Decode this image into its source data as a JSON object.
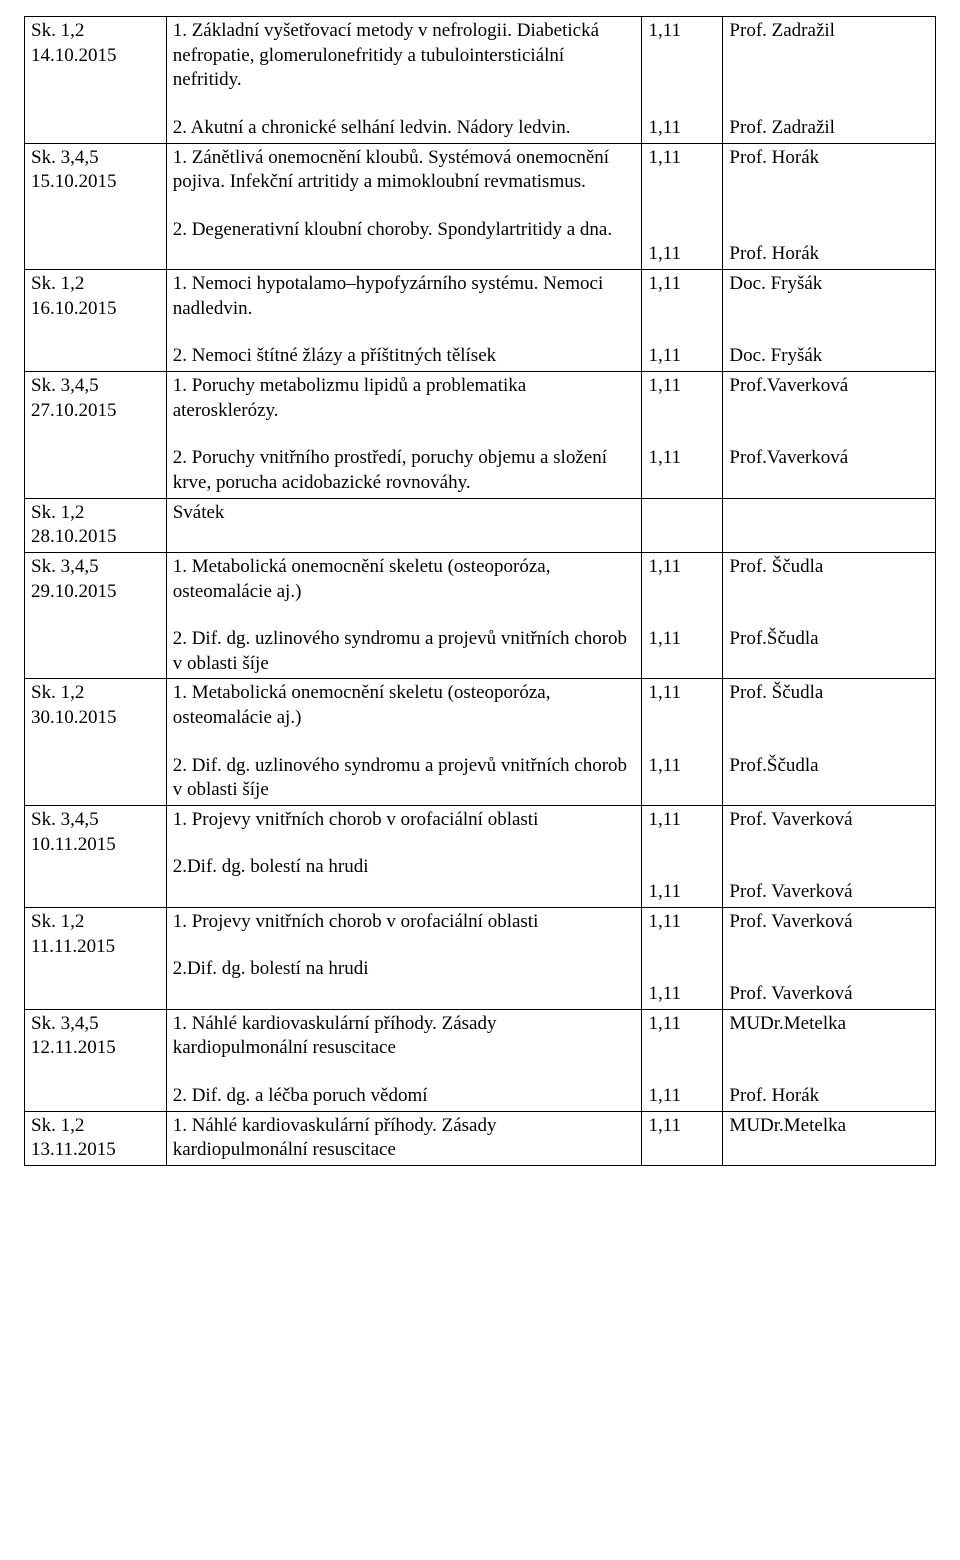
{
  "table": {
    "columns": [
      "date",
      "topic",
      "code",
      "lecturer"
    ],
    "col_widths_pct": [
      14,
      47,
      8,
      21
    ],
    "font_family": "Times New Roman",
    "font_size_pt": 14,
    "border_color": "#000000",
    "background_color": "#ffffff",
    "text_color": "#000000",
    "rows": [
      {
        "date_group": "Sk. 1,2",
        "date": "14.10.2015",
        "topic1": "1. Základní vyšetřovací metody v nefrologii. Diabetická nefropatie, glomerulonefritidy a tubulointersticiální nefritidy.",
        "topic2": "2. Akutní a chronické selhání ledvin. Nádory ledvin.",
        "code1": "1,11",
        "code2": "1,11",
        "lect1": "Prof. Zadražil",
        "lect2": "Prof. Zadražil"
      },
      {
        "date_group": "Sk. 3,4,5",
        "date": "15.10.2015",
        "topic1": "1. Zánětlivá onemocnění kloubů. Systémová onemocnění pojiva. Infekční artritidy a mimokloubní revmatismus.",
        "topic2": "2. Degenerativní kloubní choroby. Spondylartritidy a dna.",
        "code1": "1,11",
        "code2": "1,11",
        "lect1": "Prof. Horák",
        "lect2": "Prof. Horák"
      },
      {
        "date_group": "Sk. 1,2",
        "date": "16.10.2015",
        "topic1": "1. Nemoci hypotalamo–hypofyzárního systému. Nemoci nadledvin.",
        "topic2": "2. Nemoci štítné žlázy a příštitných tělísek",
        "code1": "1,11",
        "code2": "1,11",
        "lect1": "Doc. Fryšák",
        "lect2": "Doc. Fryšák"
      },
      {
        "date_group": "Sk. 3,4,5",
        "date": "27.10.2015",
        "topic1": "1. Poruchy metabolizmu lipidů a problematika aterosklerózy.",
        "topic2": "2. Poruchy vnitřního prostředí, poruchy objemu a složení krve, porucha acidobazické rovnováhy.",
        "code1": "1,11",
        "code2": "1,11",
        "lect1": "Prof.Vaverková",
        "lect2": "Prof.Vaverková"
      },
      {
        "date_group": "Sk. 1,2",
        "date": "28.10.2015",
        "topic1": "Svátek",
        "topic2": "",
        "code1": "",
        "code2": "",
        "lect1": "",
        "lect2": ""
      },
      {
        "date_group": "Sk. 3,4,5",
        "date": "29.10.2015",
        "topic1": "1. Metabolická onemocnění skeletu (osteoporóza, osteomalácie aj.)",
        "topic2": "2. Dif. dg. uzlinového syndromu a projevů vnitřních chorob v oblasti šíje",
        "code1": "1,11",
        "code2": "1,11",
        "lect1": "Prof. Ščudla",
        "lect2": "Prof.Ščudla"
      },
      {
        "date_group": "Sk. 1,2",
        "date": "30.10.2015",
        "topic1": "1. Metabolická onemocnění skeletu (osteoporóza, osteomalácie aj.)",
        "topic2": "2. Dif. dg. uzlinového syndromu a projevů vnitřních chorob v oblasti šíje",
        "code1": "1,11",
        "code2": "1,11",
        "lect1": "Prof. Ščudla",
        "lect2": "Prof.Ščudla"
      },
      {
        "date_group": "Sk. 3,4,5",
        "date": "10.11.2015",
        "topic1": "1. Projevy vnitřních chorob v orofaciální oblasti",
        "topic2": "2.Dif. dg. bolestí na hrudi",
        "code1": "1,11",
        "code2": "1,11",
        "lect1": "Prof. Vaverková",
        "lect2": "Prof. Vaverková"
      },
      {
        "date_group": "Sk. 1,2",
        "date": "11.11.2015",
        "topic1": "1. Projevy vnitřních chorob v orofaciální oblasti",
        "topic2": "2.Dif. dg. bolestí na hrudi",
        "code1": "1,11",
        "code2": "1,11",
        "lect1": "Prof. Vaverková",
        "lect2": "Prof. Vaverková"
      },
      {
        "date_group": "Sk. 3,4,5",
        "date": "12.11.2015",
        "topic1": "1. Náhlé kardiovaskulární příhody. Zásady kardiopulmonální resuscitace",
        "topic2": "2. Dif. dg. a léčba poruch vědomí",
        "code1": "1,11",
        "code2": "1,11",
        "lect1": "MUDr.Metelka",
        "lect2": "Prof. Horák"
      },
      {
        "date_group": "Sk. 1,2",
        "date": "13.11.2015",
        "topic1": "1. Náhlé kardiovaskulární příhody. Zásady kardiopulmonální resuscitace",
        "topic2": "",
        "code1": "1,11",
        "code2": "",
        "lect1": "MUDr.Metelka",
        "lect2": ""
      }
    ]
  }
}
